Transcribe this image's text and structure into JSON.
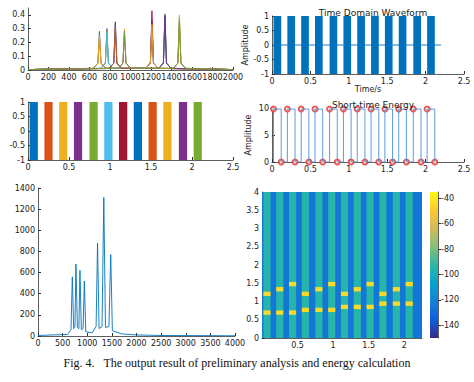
{
  "caption": "Fig. 4.   The output result of preliminary analysis and energy calculation",
  "chart_data": [
    {
      "type": "line",
      "grid": false,
      "xlim": [
        0,
        2000
      ],
      "xticks": [
        0,
        200,
        400,
        600,
        800,
        1000,
        1200,
        1400,
        1600,
        1800,
        2000
      ],
      "ylim": [
        0,
        0.45
      ],
      "yticks": [
        0,
        0.1,
        0.2,
        0.3,
        0.4
      ],
      "series": [
        {
          "color": "#0072BD",
          "x": [
            0,
            637,
            682,
            697,
            712,
            757,
            1149,
            1194,
            1209,
            1224,
            1269,
            2000
          ],
          "values": [
            0.003,
            0.012,
            0.05,
            0.28,
            0.05,
            0.012,
            0.012,
            0.05,
            0.36,
            0.05,
            0.012,
            0.003
          ]
        },
        {
          "color": "#D95319",
          "x": [
            0,
            637,
            682,
            697,
            712,
            757,
            1276,
            1321,
            1336,
            1351,
            1396,
            2000
          ],
          "values": [
            0.003,
            0.012,
            0.05,
            0.26,
            0.05,
            0.012,
            0.012,
            0.05,
            0.38,
            0.05,
            0.012,
            0.003
          ]
        },
        {
          "color": "#EDB120",
          "x": [
            0,
            637,
            682,
            697,
            712,
            757,
            1417,
            1462,
            1477,
            1492,
            1537,
            2000
          ],
          "values": [
            0.003,
            0.012,
            0.05,
            0.25,
            0.05,
            0.012,
            0.012,
            0.05,
            0.4,
            0.05,
            0.012,
            0.003
          ]
        },
        {
          "color": "#7E2F8E",
          "x": [
            0,
            710,
            755,
            770,
            785,
            830,
            1149,
            1194,
            1209,
            1224,
            1269,
            2000
          ],
          "values": [
            0.003,
            0.012,
            0.05,
            0.3,
            0.05,
            0.012,
            0.012,
            0.05,
            0.34,
            0.05,
            0.012,
            0.003
          ]
        },
        {
          "color": "#77AC30",
          "x": [
            0,
            710,
            755,
            770,
            785,
            830,
            1276,
            1321,
            1336,
            1351,
            1396,
            2000
          ],
          "values": [
            0.003,
            0.012,
            0.05,
            0.29,
            0.05,
            0.012,
            0.012,
            0.05,
            0.41,
            0.05,
            0.012,
            0.003
          ]
        },
        {
          "color": "#4DBEEE",
          "x": [
            0,
            710,
            755,
            770,
            785,
            830,
            1417,
            1462,
            1477,
            1492,
            1537,
            2000
          ],
          "values": [
            0.003,
            0.012,
            0.05,
            0.27,
            0.05,
            0.012,
            0.012,
            0.05,
            0.37,
            0.05,
            0.012,
            0.003
          ]
        },
        {
          "color": "#A2142F",
          "x": [
            0,
            792,
            837,
            852,
            867,
            912,
            1149,
            1194,
            1209,
            1224,
            1269,
            2000
          ],
          "values": [
            0.003,
            0.012,
            0.05,
            0.35,
            0.05,
            0.012,
            0.012,
            0.05,
            0.43,
            0.05,
            0.012,
            0.003
          ]
        },
        {
          "color": "#0072BD",
          "x": [
            0,
            792,
            837,
            852,
            867,
            912,
            1276,
            1321,
            1336,
            1351,
            1396,
            2000
          ],
          "values": [
            0.003,
            0.012,
            0.05,
            0.33,
            0.05,
            0.012,
            0.012,
            0.05,
            0.39,
            0.05,
            0.012,
            0.003
          ]
        },
        {
          "color": "#D95319",
          "x": [
            0,
            792,
            837,
            852,
            867,
            912,
            1417,
            1462,
            1477,
            1492,
            1537,
            2000
          ],
          "values": [
            0.003,
            0.012,
            0.05,
            0.31,
            0.05,
            0.012,
            0.012,
            0.05,
            0.35,
            0.05,
            0.012,
            0.003
          ]
        },
        {
          "color": "#EDB120",
          "x": [
            0,
            881,
            926,
            941,
            956,
            1001,
            1149,
            1194,
            1209,
            1224,
            1269,
            2000
          ],
          "values": [
            0.003,
            0.012,
            0.05,
            0.3,
            0.05,
            0.012,
            0.012,
            0.05,
            0.33,
            0.05,
            0.012,
            0.003
          ]
        },
        {
          "color": "#7E2F8E",
          "x": [
            0,
            881,
            926,
            941,
            956,
            1001,
            1276,
            1321,
            1336,
            1351,
            1396,
            2000
          ],
          "values": [
            0.003,
            0.012,
            0.05,
            0.28,
            0.05,
            0.012,
            0.012,
            0.05,
            0.4,
            0.05,
            0.012,
            0.003
          ]
        },
        {
          "color": "#77AC30",
          "x": [
            0,
            881,
            926,
            941,
            956,
            1001,
            1417,
            1462,
            1477,
            1492,
            1537,
            2000
          ],
          "values": [
            0.003,
            0.012,
            0.05,
            0.27,
            0.05,
            0.012,
            0.012,
            0.05,
            0.38,
            0.05,
            0.012,
            0.003
          ]
        }
      ]
    },
    {
      "type": "area",
      "title": "Time Domain Waveform",
      "xlabel": "Time/s",
      "ylabel": "Amplitude",
      "grid": false,
      "xlim": [
        0,
        2.5
      ],
      "xticks": [
        0,
        0.5,
        1,
        1.5,
        2,
        2.5
      ],
      "ylim": [
        -1,
        1
      ],
      "yticks": [
        -1,
        -0.5,
        0,
        0.5,
        1
      ],
      "series": [
        {
          "type": "line",
          "color": "#0072BD",
          "x": [
            0,
            2.2
          ],
          "values": [
            0,
            0
          ]
        },
        {
          "color": "#0072BD",
          "amplitude": [
            -1,
            1
          ],
          "segments": [
            [
              0.02,
              0.12
            ],
            [
              0.2,
              0.3
            ],
            [
              0.38,
              0.48
            ],
            [
              0.56,
              0.66
            ],
            [
              0.75,
              0.85
            ],
            [
              0.93,
              1.03
            ],
            [
              1.11,
              1.21
            ],
            [
              1.29,
              1.39
            ],
            [
              1.47,
              1.57
            ],
            [
              1.65,
              1.75
            ],
            [
              1.84,
              1.94
            ],
            [
              2.02,
              2.12
            ]
          ]
        }
      ]
    },
    {
      "type": "area",
      "grid": false,
      "xlim": [
        0,
        2.5
      ],
      "xticks": [
        0,
        0.5,
        1,
        1.5,
        2,
        2.5
      ],
      "ylim": [
        -1,
        1
      ],
      "yticks": [
        -1,
        -0.5,
        0,
        0.5,
        1
      ],
      "series": [
        {
          "colors": [
            "#0072BD",
            "#D95319",
            "#EDB120",
            "#7E2F8E",
            "#77AC30",
            "#4DBEEE",
            "#A2142F",
            "#0072BD",
            "#D95319",
            "#EDB120",
            "#7E2F8E",
            "#77AC30"
          ],
          "amplitude": [
            -1,
            1
          ],
          "segments": [
            [
              0.02,
              0.12
            ],
            [
              0.2,
              0.3
            ],
            [
              0.38,
              0.48
            ],
            [
              0.56,
              0.66
            ],
            [
              0.75,
              0.85
            ],
            [
              0.93,
              1.03
            ],
            [
              1.11,
              1.21
            ],
            [
              1.29,
              1.39
            ],
            [
              1.47,
              1.57
            ],
            [
              1.65,
              1.75
            ],
            [
              1.84,
              1.94
            ],
            [
              2.02,
              2.12
            ]
          ]
        }
      ]
    },
    {
      "type": "line",
      "title": "Short-time Energy",
      "ylabel": "Amplitude",
      "grid": false,
      "xlim": [
        0,
        2.5
      ],
      "xticks": [
        0,
        0.5,
        1,
        1.5,
        2,
        2.5
      ],
      "ylim": [
        0,
        10
      ],
      "yticks": [
        0,
        5,
        10
      ],
      "series": [
        {
          "color": "#4A90D9",
          "level": 9.8,
          "segments": [
            [
              0.02,
              0.12
            ],
            [
              0.2,
              0.3
            ],
            [
              0.38,
              0.48
            ],
            [
              0.56,
              0.66
            ],
            [
              0.75,
              0.85
            ],
            [
              0.93,
              1.03
            ],
            [
              1.11,
              1.21
            ],
            [
              1.29,
              1.39
            ],
            [
              1.47,
              1.57
            ],
            [
              1.65,
              1.75
            ],
            [
              1.84,
              1.94
            ],
            [
              2.02,
              2.12
            ]
          ]
        },
        {
          "type": "scatter",
          "marker": "circle",
          "color": "#E8302A",
          "x": [
            0.02,
            0.2,
            0.38,
            0.56,
            0.75,
            0.93,
            1.11,
            1.29,
            1.47,
            1.65,
            1.84,
            2.02,
            0.12,
            0.3,
            0.48,
            0.66,
            0.85,
            1.03,
            1.21,
            1.39,
            1.57,
            1.75,
            1.94,
            2.12
          ],
          "values": [
            9.8,
            9.8,
            9.8,
            9.8,
            9.8,
            9.8,
            9.8,
            9.8,
            9.8,
            9.8,
            9.8,
            9.8,
            0,
            0,
            0,
            0,
            0,
            0,
            0,
            0,
            0,
            0,
            0,
            0
          ]
        }
      ]
    },
    {
      "type": "line",
      "grid": false,
      "xlim": [
        0,
        4000
      ],
      "xticks": [
        0,
        500,
        1000,
        1500,
        2000,
        2500,
        3000,
        3500,
        4000
      ],
      "ylim": [
        0,
        1400
      ],
      "yticks": [
        0,
        200,
        400,
        600,
        800,
        1000,
        1200,
        1400
      ],
      "series": [
        {
          "color": "#0072BD",
          "x": [
            0,
            600,
            670,
            697,
            725,
            750,
            770,
            800,
            830,
            852,
            880,
            915,
            941,
            970,
            1100,
            1180,
            1209,
            1240,
            1300,
            1336,
            1370,
            1440,
            1477,
            1510,
            1700,
            2000,
            2500,
            3000,
            3500,
            4000
          ],
          "values": [
            5,
            15,
            60,
            560,
            70,
            90,
            680,
            80,
            70,
            620,
            60,
            70,
            520,
            40,
            30,
            90,
            880,
            70,
            90,
            1310,
            80,
            90,
            770,
            50,
            20,
            10,
            5,
            4,
            3,
            2
          ]
        }
      ]
    },
    {
      "type": "heatmap",
      "grid": false,
      "xlim": [
        0,
        2.25
      ],
      "xticks": [
        0.5,
        1,
        1.5,
        2
      ],
      "ylim": [
        0,
        4
      ],
      "yticks": [
        0,
        0.5,
        1,
        1.5,
        2,
        2.5,
        3,
        3.5,
        4
      ],
      "clim": [
        -150,
        -35
      ],
      "cticks": [
        -140,
        -120,
        -100,
        -80,
        -60,
        -40
      ],
      "cells": [
        [
          0,
          2.25,
          0,
          4,
          -125
        ],
        [
          0.02,
          0.12,
          0,
          4,
          -95
        ],
        [
          0.02,
          0.12,
          0.637,
          0.757,
          -45
        ],
        [
          0.02,
          0.12,
          1.149,
          1.269,
          -45
        ],
        [
          0.2,
          0.3,
          0,
          4,
          -95
        ],
        [
          0.2,
          0.3,
          0.637,
          0.757,
          -45
        ],
        [
          0.2,
          0.3,
          1.276,
          1.396,
          -45
        ],
        [
          0.38,
          0.48,
          0,
          4,
          -95
        ],
        [
          0.38,
          0.48,
          0.637,
          0.757,
          -45
        ],
        [
          0.38,
          0.48,
          1.417,
          1.537,
          -45
        ],
        [
          0.56,
          0.66,
          0,
          4,
          -95
        ],
        [
          0.56,
          0.66,
          0.71,
          0.83,
          -45
        ],
        [
          0.56,
          0.66,
          1.149,
          1.269,
          -45
        ],
        [
          0.75,
          0.85,
          0,
          4,
          -95
        ],
        [
          0.75,
          0.85,
          0.71,
          0.83,
          -45
        ],
        [
          0.75,
          0.85,
          1.276,
          1.396,
          -45
        ],
        [
          0.93,
          1.03,
          0,
          4,
          -95
        ],
        [
          0.93,
          1.03,
          0.71,
          0.83,
          -45
        ],
        [
          0.93,
          1.03,
          1.417,
          1.537,
          -45
        ],
        [
          1.11,
          1.21,
          0,
          4,
          -95
        ],
        [
          1.11,
          1.21,
          0.792,
          0.912,
          -45
        ],
        [
          1.11,
          1.21,
          1.149,
          1.269,
          -45
        ],
        [
          1.29,
          1.39,
          0,
          4,
          -95
        ],
        [
          1.29,
          1.39,
          0.792,
          0.912,
          -45
        ],
        [
          1.29,
          1.39,
          1.276,
          1.396,
          -45
        ],
        [
          1.47,
          1.57,
          0,
          4,
          -95
        ],
        [
          1.47,
          1.57,
          0.792,
          0.912,
          -45
        ],
        [
          1.47,
          1.57,
          1.417,
          1.537,
          -45
        ],
        [
          1.65,
          1.75,
          0,
          4,
          -95
        ],
        [
          1.65,
          1.75,
          0.881,
          1.001,
          -45
        ],
        [
          1.65,
          1.75,
          1.149,
          1.269,
          -45
        ],
        [
          1.84,
          1.94,
          0,
          4,
          -95
        ],
        [
          1.84,
          1.94,
          0.881,
          1.001,
          -45
        ],
        [
          1.84,
          1.94,
          1.276,
          1.396,
          -45
        ],
        [
          2.02,
          2.12,
          0,
          4,
          -95
        ],
        [
          2.02,
          2.12,
          0.881,
          1.001,
          -45
        ],
        [
          2.02,
          2.12,
          1.417,
          1.537,
          -45
        ]
      ]
    }
  ]
}
